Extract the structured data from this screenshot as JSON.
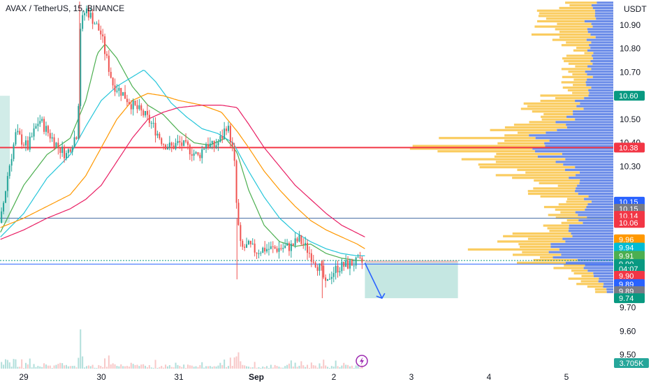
{
  "chart_data": {
    "type": "candlestick",
    "title": "AVAX / TetherUS, 15, BINANCE",
    "currency": "USDT",
    "ylim": [
      9.5,
      11.0
    ],
    "y_ticks": [
      9.5,
      9.6,
      9.7,
      9.8,
      10.3,
      10.4,
      10.5,
      10.7,
      10.8,
      10.9
    ],
    "x_ticks": [
      {
        "label": "29",
        "day": 0
      },
      {
        "label": "30",
        "day": 1
      },
      {
        "label": "31",
        "day": 2
      },
      {
        "label": "Sep",
        "day": 3
      },
      {
        "label": "2",
        "day": 4
      },
      {
        "label": "3",
        "day": 5
      },
      {
        "label": "4",
        "day": 6
      },
      {
        "label": "5",
        "day": 7
      }
    ],
    "x_range_days": [
      -0.3,
      7.2
    ],
    "last_day": 4.4,
    "price_keypoints": [
      [
        -0.3,
        10.06
      ],
      [
        -0.2,
        10.28
      ],
      [
        -0.1,
        10.44
      ],
      [
        0.05,
        10.38
      ],
      [
        0.2,
        10.5
      ],
      [
        0.3,
        10.45
      ],
      [
        0.45,
        10.38
      ],
      [
        0.55,
        10.35
      ],
      [
        0.65,
        10.42
      ],
      [
        0.7,
        10.45
      ],
      [
        0.72,
        10.88
      ],
      [
        0.8,
        10.97
      ],
      [
        0.9,
        10.92
      ],
      [
        1.0,
        10.86
      ],
      [
        1.05,
        10.78
      ],
      [
        1.15,
        10.65
      ],
      [
        1.25,
        10.62
      ],
      [
        1.4,
        10.56
      ],
      [
        1.55,
        10.52
      ],
      [
        1.65,
        10.48
      ],
      [
        1.8,
        10.4
      ],
      [
        1.9,
        10.38
      ],
      [
        2.0,
        10.4
      ],
      [
        2.15,
        10.37
      ],
      [
        2.25,
        10.34
      ],
      [
        2.35,
        10.4
      ],
      [
        2.45,
        10.38
      ],
      [
        2.55,
        10.42
      ],
      [
        2.62,
        10.48
      ],
      [
        2.68,
        10.4
      ],
      [
        2.72,
        10.3
      ],
      [
        2.75,
        10.1
      ],
      [
        2.8,
        9.95
      ],
      [
        2.9,
        9.96
      ],
      [
        3.0,
        9.94
      ],
      [
        3.1,
        9.95
      ],
      [
        3.25,
        9.95
      ],
      [
        3.45,
        9.96
      ],
      [
        3.55,
        9.99
      ],
      [
        3.65,
        9.95
      ],
      [
        3.75,
        9.9
      ],
      [
        3.85,
        9.85
      ],
      [
        3.9,
        9.78
      ],
      [
        3.95,
        9.84
      ],
      [
        4.05,
        9.87
      ],
      [
        4.15,
        9.88
      ],
      [
        4.25,
        9.89
      ],
      [
        4.35,
        9.89
      ],
      [
        4.4,
        9.89
      ]
    ],
    "moving_averages": [
      {
        "color": "#4caf50",
        "points": [
          [
            -0.3,
            10.02
          ],
          [
            0.0,
            10.22
          ],
          [
            0.3,
            10.35
          ],
          [
            0.6,
            10.42
          ],
          [
            0.8,
            10.58
          ],
          [
            0.95,
            10.78
          ],
          [
            1.05,
            10.82
          ],
          [
            1.2,
            10.76
          ],
          [
            1.4,
            10.64
          ],
          [
            1.6,
            10.56
          ],
          [
            1.8,
            10.52
          ],
          [
            2.0,
            10.45
          ],
          [
            2.2,
            10.4
          ],
          [
            2.4,
            10.39
          ],
          [
            2.6,
            10.42
          ],
          [
            2.75,
            10.36
          ],
          [
            2.9,
            10.2
          ],
          [
            3.1,
            10.05
          ],
          [
            3.3,
            9.98
          ],
          [
            3.5,
            9.96
          ],
          [
            3.7,
            9.97
          ],
          [
            3.9,
            9.93
          ],
          [
            4.1,
            9.91
          ],
          [
            4.3,
            9.9
          ],
          [
            4.4,
            9.9
          ]
        ]
      },
      {
        "color": "#26c6da",
        "points": [
          [
            -0.3,
            10.0
          ],
          [
            0.0,
            10.1
          ],
          [
            0.3,
            10.25
          ],
          [
            0.6,
            10.35
          ],
          [
            0.8,
            10.47
          ],
          [
            1.0,
            10.58
          ],
          [
            1.2,
            10.64
          ],
          [
            1.4,
            10.68
          ],
          [
            1.55,
            10.71
          ],
          [
            1.7,
            10.66
          ],
          [
            1.9,
            10.57
          ],
          [
            2.1,
            10.51
          ],
          [
            2.3,
            10.46
          ],
          [
            2.5,
            10.44
          ],
          [
            2.7,
            10.4
          ],
          [
            2.9,
            10.28
          ],
          [
            3.1,
            10.17
          ],
          [
            3.3,
            10.08
          ],
          [
            3.5,
            10.02
          ],
          [
            3.7,
            9.98
          ],
          [
            3.9,
            9.95
          ],
          [
            4.1,
            9.93
          ],
          [
            4.3,
            9.92
          ],
          [
            4.4,
            9.92
          ]
        ]
      },
      {
        "color": "#ff9800",
        "points": [
          [
            -0.3,
            10.04
          ],
          [
            0.0,
            10.08
          ],
          [
            0.3,
            10.13
          ],
          [
            0.6,
            10.18
          ],
          [
            0.8,
            10.26
          ],
          [
            1.0,
            10.38
          ],
          [
            1.2,
            10.5
          ],
          [
            1.4,
            10.58
          ],
          [
            1.6,
            10.61
          ],
          [
            1.8,
            10.6
          ],
          [
            2.0,
            10.58
          ],
          [
            2.3,
            10.56
          ],
          [
            2.55,
            10.53
          ],
          [
            2.75,
            10.45
          ],
          [
            2.9,
            10.38
          ],
          [
            3.1,
            10.28
          ],
          [
            3.3,
            10.2
          ],
          [
            3.5,
            10.13
          ],
          [
            3.7,
            10.07
          ],
          [
            3.9,
            10.03
          ],
          [
            4.1,
            10.0
          ],
          [
            4.3,
            9.97
          ],
          [
            4.4,
            9.95
          ]
        ]
      },
      {
        "color": "#e91e63",
        "points": [
          [
            -0.3,
            9.99
          ],
          [
            0.0,
            10.03
          ],
          [
            0.3,
            10.08
          ],
          [
            0.6,
            10.12
          ],
          [
            0.8,
            10.16
          ],
          [
            1.0,
            10.22
          ],
          [
            1.2,
            10.32
          ],
          [
            1.4,
            10.42
          ],
          [
            1.6,
            10.5
          ],
          [
            1.8,
            10.53
          ],
          [
            2.0,
            10.55
          ],
          [
            2.3,
            10.56
          ],
          [
            2.55,
            10.56
          ],
          [
            2.75,
            10.55
          ],
          [
            2.9,
            10.48
          ],
          [
            3.1,
            10.38
          ],
          [
            3.3,
            10.3
          ],
          [
            3.5,
            10.22
          ],
          [
            3.7,
            10.16
          ],
          [
            3.9,
            10.1
          ],
          [
            4.1,
            10.05
          ],
          [
            4.4,
            10.0
          ]
        ]
      }
    ],
    "horizontal_lines": [
      {
        "price": 10.38,
        "color": "#f23645",
        "width": 2
      },
      {
        "price": 10.08,
        "color": "#4a6fa5",
        "width": 1
      },
      {
        "price": 9.885,
        "color": "#2962ff",
        "width": 1
      },
      {
        "price": 9.9,
        "color": "#089981",
        "width": 1,
        "dashed": true
      }
    ],
    "position_box": {
      "x0": 4.4,
      "x1": 5.6,
      "y_top": 9.9,
      "y_bottom": 9.74,
      "color": "#b2dfd8"
    },
    "left_box": {
      "x0": -0.3,
      "x1": -0.18,
      "y_top": 10.6,
      "y_bottom": 10.06,
      "color": "#b2dfd8"
    },
    "arrow": {
      "from": [
        4.4,
        9.89
      ],
      "to": [
        4.62,
        9.74
      ],
      "color": "#2962ff"
    },
    "volume_profile": {
      "y_min": 9.76,
      "y_max": 11.0,
      "bins": 110,
      "anchor_x": 878,
      "blue_shape": [
        [
          9.76,
          8
        ],
        [
          9.85,
          30
        ],
        [
          9.95,
          95
        ],
        [
          10.05,
          55
        ],
        [
          10.15,
          35
        ],
        [
          10.3,
          70
        ],
        [
          10.4,
          120
        ],
        [
          10.5,
          65
        ],
        [
          10.6,
          45
        ],
        [
          10.75,
          28
        ],
        [
          10.9,
          35
        ],
        [
          11.0,
          25
        ]
      ],
      "yellow_shape": [
        [
          9.76,
          22
        ],
        [
          9.85,
          70
        ],
        [
          9.95,
          165
        ],
        [
          10.05,
          90
        ],
        [
          10.15,
          80
        ],
        [
          10.3,
          150
        ],
        [
          10.38,
          245
        ],
        [
          10.45,
          180
        ],
        [
          10.55,
          110
        ],
        [
          10.65,
          60
        ],
        [
          10.8,
          55
        ],
        [
          10.9,
          115
        ],
        [
          11.0,
          70
        ]
      ]
    },
    "volume_bars": {
      "count": 168,
      "max_height": 130
    }
  },
  "price_badges": [
    {
      "text": "10.60",
      "price": 10.6,
      "color": "#089981"
    },
    {
      "text": "10.38",
      "price": 10.38,
      "color": "#f23645"
    },
    {
      "text": "10.15",
      "price": 10.15,
      "color": "#2962ff"
    },
    {
      "text": "10.15",
      "price": 10.12,
      "color": "#787b86"
    },
    {
      "text": "10.14",
      "price": 10.09,
      "color": "#f23645"
    },
    {
      "text": "10.06",
      "price": 10.06,
      "color": "#f23645"
    },
    {
      "text": "9.96",
      "price": 9.99,
      "color": "#ff9800"
    },
    {
      "text": "9.94",
      "price": 9.955,
      "color": "#00bcd4"
    },
    {
      "text": "9.91",
      "price": 9.92,
      "color": "#4caf50"
    },
    {
      "text": "9.90",
      "price": 9.885,
      "color": "#089981"
    },
    {
      "text": "04:07",
      "price": 9.865,
      "color": "#089981"
    },
    {
      "text": "9.90",
      "price": 9.835,
      "color": "#f23645"
    },
    {
      "text": "9.89",
      "price": 9.8,
      "color": "#2962ff"
    },
    {
      "text": "9.89",
      "price": 9.77,
      "color": "#787b86"
    },
    {
      "text": "9.74",
      "price": 9.74,
      "color": "#089981"
    }
  ],
  "volume_badge": {
    "text": "3.705K",
    "color": "#26a69a"
  },
  "lightning_icon": "lightning-icon"
}
